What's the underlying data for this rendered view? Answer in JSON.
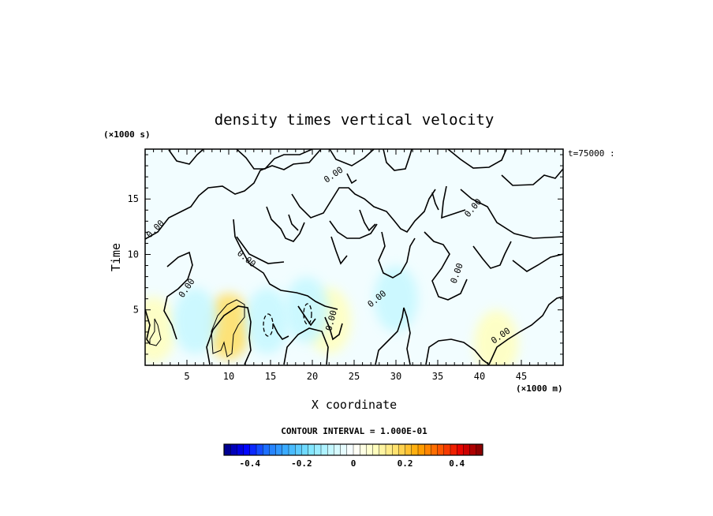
{
  "chart_data": {
    "type": "heatmap",
    "title": "density times vertical velocity",
    "xlabel": "X coordinate",
    "ylabel": "Time",
    "x_unit": "(×1000 m)",
    "y_unit": "(×1000 s)",
    "timestamp": "t=75000 :",
    "xlim": [
      0,
      50
    ],
    "ylim": [
      0,
      19.5
    ],
    "x_ticks": [
      5,
      10,
      15,
      20,
      25,
      30,
      35,
      40,
      45
    ],
    "y_ticks": [
      5,
      10,
      15
    ],
    "contour_interval_label": "CONTOUR INTERVAL = 1.000E-01",
    "contour_labels": [
      "0.00"
    ],
    "colorbar": {
      "min": -0.5,
      "max": 0.5,
      "ticks": [
        -0.4,
        -0.2,
        0,
        0.2,
        0.4
      ],
      "tick_labels": [
        "-0.4",
        "-0.2",
        "0",
        "0.2",
        "0.4"
      ],
      "colors": [
        "#00007f",
        "#0000ff",
        "#1f75ff",
        "#3fb4ff",
        "#7fe6ff",
        "#c8f8ff",
        "#ffffff",
        "#ffffc0",
        "#ffe06a",
        "#ffa800",
        "#ff5a00",
        "#e60000",
        "#7f0000"
      ]
    },
    "features": [
      {
        "kind": "positive",
        "x": 10,
        "y": 3.5,
        "value": 0.13
      },
      {
        "kind": "positive",
        "x": 1,
        "y": 3.2,
        "value": 0.12
      },
      {
        "kind": "positive",
        "x": 22,
        "y": 4,
        "value": 0.06
      },
      {
        "kind": "positive",
        "x": 42,
        "y": 2,
        "value": 0.05
      },
      {
        "kind": "negative",
        "x": 14.6,
        "y": 4,
        "value": -0.11
      },
      {
        "kind": "negative",
        "x": 19.3,
        "y": 5,
        "value": -0.11
      },
      {
        "kind": "negative",
        "x": 6,
        "y": 4,
        "value": -0.06
      },
      {
        "kind": "negative",
        "x": 30,
        "y": 6,
        "value": -0.05
      }
    ]
  }
}
